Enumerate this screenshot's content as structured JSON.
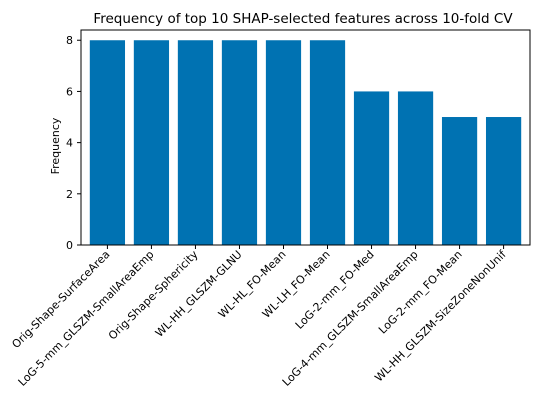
{
  "chart_data": {
    "type": "bar",
    "title": "Frequency of top 10 SHAP-selected features across 10-fold CV",
    "xlabel": "",
    "ylabel": "Frequency",
    "categories": [
      "Orig-Shape-SurfaceArea",
      "LoG-5-mm_GLSZM-SmallAreaEmp",
      "Orig-Shape-Sphericity",
      "WL-HH_GLSZM-GLNU",
      "WL-HL_FO-Mean",
      "WL-LH_FO-Mean",
      "LoG-2-mm_FO-Med",
      "LoG-4-mm_GLSZM-SmallAreaEmp",
      "LoG-2-mm_FO-Mean",
      "WL-HH_GLSZM-SizeZoneNonUnif"
    ],
    "values": [
      8,
      8,
      8,
      8,
      8,
      8,
      6,
      6,
      5,
      5
    ],
    "ylim": [
      0,
      8.4
    ],
    "yticks": [
      0,
      2,
      4,
      6,
      8
    ],
    "bar_color": "#0072b2",
    "grid": false,
    "legend": "none"
  }
}
